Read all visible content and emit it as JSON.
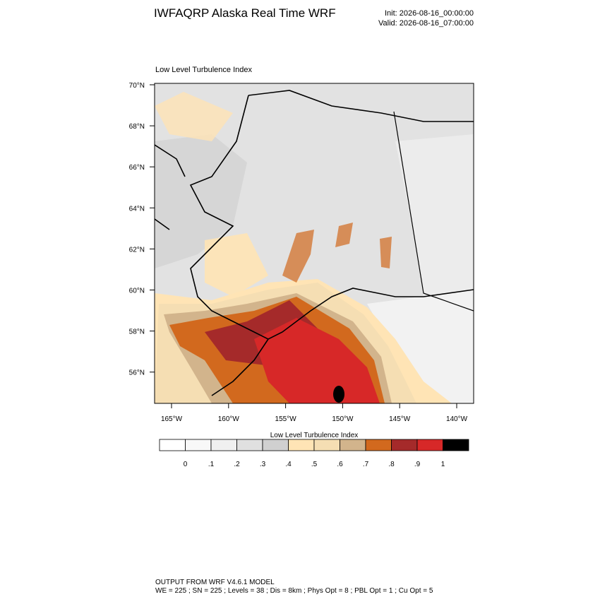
{
  "header": {
    "title": "IWFAQRP Alaska Real Time WRF",
    "init": "Init: 2026-08-16_00:00:00",
    "valid": "Valid: 2026-08-16_07:00:00"
  },
  "map": {
    "label": "Low Level Turbulence Index",
    "lat_labels": [
      "70°N",
      "68°N",
      "66°N",
      "64°N",
      "62°N",
      "60°N",
      "58°N",
      "56°N"
    ],
    "lon_labels": [
      "165°W",
      "160°W",
      "155°W",
      "150°W",
      "145°W",
      "140°W"
    ]
  },
  "colorbar": {
    "title": "Low Level Turbulence Index",
    "colors": [
      "#ffffff",
      "#f8f8f8",
      "#f0f0f0",
      "#e0e0e0",
      "#d0d0d0",
      "#ffe4b5",
      "#f5deb3",
      "#d2b48c",
      "#d2691e",
      "#a52a2a",
      "#d72828",
      "#000000"
    ],
    "labels": [
      "0",
      ".1",
      ".2",
      ".3",
      ".4",
      ".5",
      ".6",
      ".7",
      ".8",
      ".9",
      "1"
    ]
  },
  "footer": {
    "line1": "OUTPUT FROM WRF V4.6.1 MODEL",
    "line2": "WE = 225 ; SN = 225 ; Levels = 38 ; Dis = 8km ; Phys Opt = 8 ; PBL Opt = 1 ; Cu Opt = 5"
  }
}
